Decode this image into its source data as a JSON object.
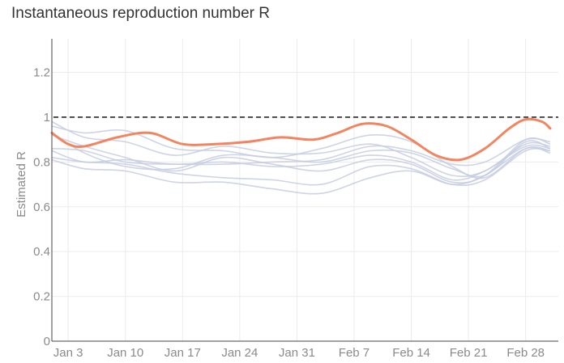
{
  "chart_data": {
    "type": "line",
    "title": "Instantaneous reproduction number R",
    "ylabel": "Estimated R",
    "xlabel": "",
    "ylim": [
      0,
      1.35
    ],
    "xlim": [
      "2021-01-01",
      "2021-03-04"
    ],
    "yticks": [
      0,
      0.2,
      0.4,
      0.6,
      0.8,
      1,
      1.2
    ],
    "ytick_labels": [
      "0",
      "0.2",
      "0.4",
      "0.6",
      "0.8",
      "1",
      "1.2"
    ],
    "xticks": [
      "2021-01-03",
      "2021-01-10",
      "2021-01-17",
      "2021-01-24",
      "2021-01-31",
      "2021-02-07",
      "2021-02-14",
      "2021-02-21",
      "2021-02-28"
    ],
    "xtick_labels": [
      "Jan 3",
      "Jan 10",
      "Jan 17",
      "Jan 24",
      "Jan 31",
      "Feb 7",
      "Feb 14",
      "Feb 21",
      "Feb 28"
    ],
    "grid": true,
    "reference_line": {
      "y": 1,
      "style": "dashed",
      "color": "#000000"
    },
    "colors": {
      "highlight": "#f4845f",
      "background_series": "#c5cde0",
      "grid": "#ebebeb"
    },
    "highlight": {
      "x": [
        "2021-01-01",
        "2021-01-03",
        "2021-01-05",
        "2021-01-09",
        "2021-01-13",
        "2021-01-17",
        "2021-01-21",
        "2021-01-25",
        "2021-01-29",
        "2021-02-02",
        "2021-02-05",
        "2021-02-08",
        "2021-02-11",
        "2021-02-14",
        "2021-02-17",
        "2021-02-20",
        "2021-02-23",
        "2021-02-26",
        "2021-02-28",
        "2021-03-02",
        "2021-03-03"
      ],
      "values": [
        0.93,
        0.88,
        0.87,
        0.91,
        0.93,
        0.88,
        0.88,
        0.89,
        0.91,
        0.9,
        0.93,
        0.97,
        0.96,
        0.9,
        0.83,
        0.81,
        0.86,
        0.95,
        0.99,
        0.98,
        0.95
      ]
    },
    "background_series": [
      {
        "x": [
          "2021-01-01",
          "2021-01-05",
          "2021-01-10",
          "2021-01-16",
          "2021-01-22",
          "2021-01-28",
          "2021-02-03",
          "2021-02-09",
          "2021-02-14",
          "2021-02-19",
          "2021-02-23",
          "2021-02-28",
          "2021-03-03"
        ],
        "values": [
          0.98,
          0.91,
          0.89,
          0.83,
          0.87,
          0.84,
          0.84,
          0.88,
          0.82,
          0.74,
          0.76,
          0.88,
          0.87
        ]
      },
      {
        "x": [
          "2021-01-01",
          "2021-01-05",
          "2021-01-10",
          "2021-01-16",
          "2021-01-22",
          "2021-01-28",
          "2021-02-03",
          "2021-02-09",
          "2021-02-14",
          "2021-02-19",
          "2021-02-23",
          "2021-02-28",
          "2021-03-03"
        ],
        "values": [
          0.96,
          0.93,
          0.94,
          0.86,
          0.85,
          0.82,
          0.86,
          0.92,
          0.89,
          0.78,
          0.73,
          0.86,
          0.85
        ]
      },
      {
        "x": [
          "2021-01-01",
          "2021-01-05",
          "2021-01-10",
          "2021-01-16",
          "2021-01-22",
          "2021-01-28",
          "2021-02-03",
          "2021-02-09",
          "2021-02-14",
          "2021-02-19",
          "2021-02-23",
          "2021-02-28",
          "2021-03-03"
        ],
        "values": [
          0.92,
          0.87,
          0.82,
          0.76,
          0.82,
          0.79,
          0.76,
          0.81,
          0.79,
          0.71,
          0.74,
          0.9,
          0.88
        ]
      },
      {
        "x": [
          "2021-01-01",
          "2021-01-05",
          "2021-01-10",
          "2021-01-16",
          "2021-01-22",
          "2021-01-28",
          "2021-02-03",
          "2021-02-09",
          "2021-02-14",
          "2021-02-19",
          "2021-02-23",
          "2021-02-28",
          "2021-03-03"
        ],
        "values": [
          0.85,
          0.8,
          0.81,
          0.79,
          0.8,
          0.78,
          0.79,
          0.83,
          0.8,
          0.72,
          0.76,
          0.87,
          0.86
        ]
      },
      {
        "x": [
          "2021-01-01",
          "2021-01-05",
          "2021-01-10",
          "2021-01-16",
          "2021-01-22",
          "2021-01-28",
          "2021-02-03",
          "2021-02-09",
          "2021-02-14",
          "2021-02-19",
          "2021-02-23",
          "2021-02-28",
          "2021-03-03"
        ],
        "values": [
          0.82,
          0.8,
          0.79,
          0.75,
          0.73,
          0.72,
          0.7,
          0.78,
          0.77,
          0.7,
          0.72,
          0.85,
          0.85
        ]
      },
      {
        "x": [
          "2021-01-01",
          "2021-01-05",
          "2021-01-10",
          "2021-01-16",
          "2021-01-22",
          "2021-01-28",
          "2021-02-03",
          "2021-02-09",
          "2021-02-14",
          "2021-02-19",
          "2021-02-23",
          "2021-02-28",
          "2021-03-03"
        ],
        "values": [
          0.81,
          0.77,
          0.76,
          0.71,
          0.71,
          0.68,
          0.66,
          0.73,
          0.76,
          0.7,
          0.74,
          0.86,
          0.84
        ]
      },
      {
        "x": [
          "2021-01-01",
          "2021-01-05",
          "2021-01-10",
          "2021-01-16",
          "2021-01-22",
          "2021-01-28",
          "2021-02-03",
          "2021-02-09",
          "2021-02-14",
          "2021-02-19",
          "2021-02-23",
          "2021-02-28",
          "2021-03-03"
        ],
        "values": [
          0.93,
          0.84,
          0.78,
          0.77,
          0.83,
          0.82,
          0.8,
          0.85,
          0.84,
          0.77,
          0.74,
          0.89,
          0.86
        ]
      },
      {
        "x": [
          "2021-01-01",
          "2021-01-05",
          "2021-01-10",
          "2021-01-16",
          "2021-01-22",
          "2021-01-28",
          "2021-02-03",
          "2021-02-09",
          "2021-02-14",
          "2021-02-19",
          "2021-02-23",
          "2021-02-28",
          "2021-03-03"
        ],
        "values": [
          0.86,
          0.85,
          0.8,
          0.79,
          0.79,
          0.8,
          0.81,
          0.87,
          0.85,
          0.79,
          0.8,
          0.9,
          0.89
        ]
      }
    ]
  }
}
